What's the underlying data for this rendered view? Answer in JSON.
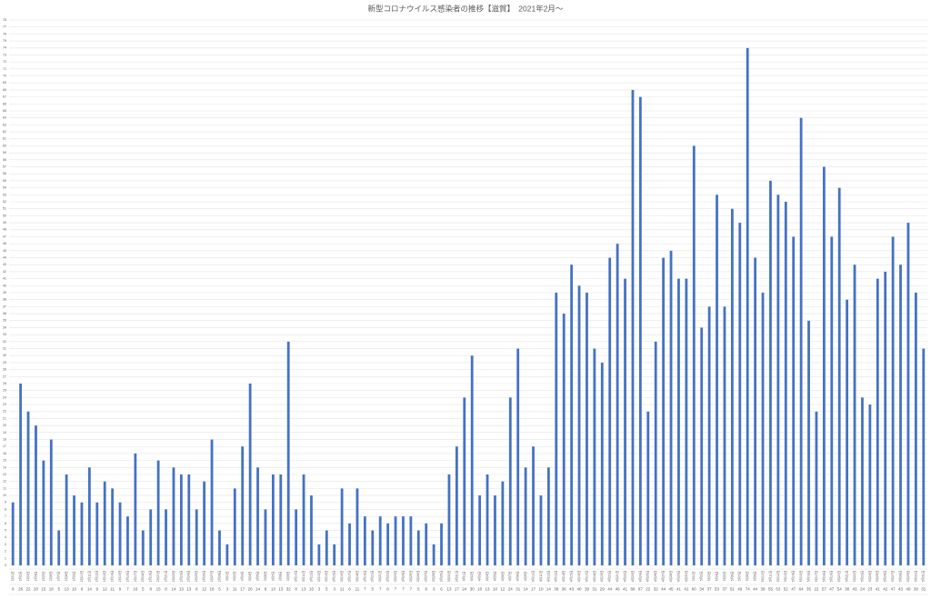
{
  "chart_data": {
    "type": "bar",
    "title": "新型コロナウイルス感染者の推移【滋賀】　2021年2月～",
    "categories": [
      "2月1日",
      "2月2日",
      "2月3日",
      "2月4日",
      "2月5日",
      "2月6日",
      "2月7日",
      "2月8日",
      "2月9日",
      "2月10日",
      "2月11日",
      "2月12日",
      "2月13日",
      "2月14日",
      "2月15日",
      "2月16日",
      "2月17日",
      "2月18日",
      "2月19日",
      "2月20日",
      "2月21日",
      "2月22日",
      "2月23日",
      "2月24日",
      "2月25日",
      "2月26日",
      "2月27日",
      "2月28日",
      "3月1日",
      "3月2日",
      "3月3日",
      "3月4日",
      "3月5日",
      "3月6日",
      "3月7日",
      "3月8日",
      "3月9日",
      "3月10日",
      "3月11日",
      "3月12日",
      "3月13日",
      "3月14日",
      "3月15日",
      "3月16日",
      "3月17日",
      "3月18日",
      "3月19日",
      "3月20日",
      "3月21日",
      "3月22日",
      "3月23日",
      "3月24日",
      "3月25日",
      "3月26日",
      "3月27日",
      "3月28日",
      "3月29日",
      "3月30日",
      "3月31日",
      "4月1日",
      "4月2日",
      "4月3日",
      "4月4日",
      "4月5日",
      "4月6日",
      "4月7日",
      "4月8日",
      "4月9日",
      "4月10日",
      "4月11日",
      "4月12日",
      "4月13日",
      "4月14日",
      "4月15日",
      "4月16日",
      "4月17日",
      "4月18日",
      "4月19日",
      "4月20日",
      "4月21日",
      "4月22日",
      "4月23日",
      "4月24日",
      "4月25日",
      "4月26日",
      "4月27日",
      "4月28日",
      "4月29日",
      "4月30日",
      "5月1日",
      "5月2日",
      "5月3日",
      "5月4日",
      "5月5日",
      "5月6日",
      "5月7日",
      "5月8日",
      "5月9日",
      "5月10日",
      "5月11日",
      "5月12日",
      "5月13日",
      "5月14日",
      "5月15日",
      "5月16日",
      "5月17日",
      "5月18日",
      "5月19日",
      "5月20日",
      "5月21日",
      "5月22日",
      "5月23日",
      "5月24日",
      "5月25日",
      "5月26日",
      "5月27日",
      "5月28日",
      "5月29日",
      "5月30日",
      "5月31日"
    ],
    "values": [
      9,
      26,
      22,
      20,
      15,
      18,
      5,
      13,
      10,
      9,
      14,
      9,
      12,
      11,
      9,
      7,
      16,
      5,
      8,
      15,
      8,
      14,
      13,
      13,
      8,
      12,
      18,
      5,
      3,
      11,
      17,
      26,
      14,
      8,
      13,
      13,
      32,
      8,
      13,
      10,
      3,
      5,
      3,
      11,
      6,
      11,
      7,
      5,
      7,
      6,
      7,
      7,
      7,
      5,
      6,
      3,
      6,
      13,
      17,
      24,
      30,
      10,
      13,
      10,
      12,
      24,
      31,
      14,
      17,
      10,
      14,
      39,
      36,
      43,
      40,
      39,
      31,
      29,
      44,
      46,
      41,
      68,
      67,
      22,
      32,
      44,
      45,
      41,
      41,
      60,
      34,
      37,
      53,
      37,
      51,
      49,
      74,
      44,
      39,
      55,
      53,
      52,
      47,
      64,
      35,
      22,
      57,
      47,
      54,
      38,
      43,
      24,
      23,
      41,
      42,
      47,
      43,
      49,
      39,
      31
    ],
    "color": "#4472c4",
    "ylim": [
      0,
      78
    ],
    "yticks": [
      0,
      1,
      2,
      3,
      4,
      5,
      6,
      7,
      8,
      9,
      10,
      11,
      12,
      13,
      14,
      15,
      16,
      17,
      18,
      19,
      20,
      21,
      22,
      23,
      24,
      25,
      26,
      27,
      28,
      29,
      30,
      31,
      32,
      33,
      34,
      35,
      36,
      37,
      38,
      39,
      40,
      41,
      42,
      43,
      44,
      45,
      46,
      47,
      48,
      49,
      50,
      51,
      52,
      53,
      54,
      55,
      56,
      57,
      58,
      59,
      60,
      61,
      62,
      63,
      64,
      65,
      66,
      67,
      68,
      69,
      70,
      71,
      72,
      73,
      74,
      75,
      76,
      77,
      78
    ],
    "grid": true
  }
}
